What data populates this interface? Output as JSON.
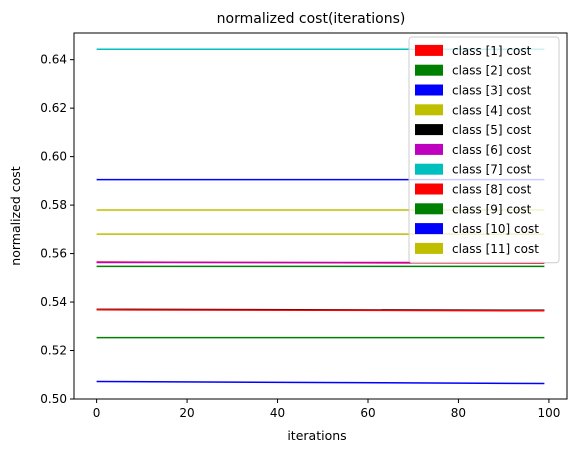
{
  "chart_data": {
    "type": "line",
    "title": "normalized cost(iterations)",
    "xlabel": "iterations",
    "ylabel": "normalized cost",
    "xlim": [
      -5,
      104
    ],
    "ylim": [
      0.5,
      0.651
    ],
    "xticks": [
      0,
      20,
      40,
      60,
      80,
      100
    ],
    "xtick_labels": [
      "0",
      "20",
      "40",
      "60",
      "80",
      "100"
    ],
    "yticks": [
      0.5,
      0.52,
      0.54,
      0.56,
      0.58,
      0.6,
      0.62,
      0.64
    ],
    "ytick_labels": [
      "0.50",
      "0.52",
      "0.54",
      "0.56",
      "0.58",
      "0.60",
      "0.62",
      "0.64"
    ],
    "grid": false,
    "legend_position": "upper-right",
    "series": [
      {
        "name": "class [1] cost",
        "color": "#ff0000",
        "x": [
          0,
          99
        ],
        "values": [
          0.5565,
          0.556
        ]
      },
      {
        "name": "class [2] cost",
        "color": "#008000",
        "x": [
          0,
          99
        ],
        "values": [
          0.5253,
          0.5253
        ]
      },
      {
        "name": "class [3] cost",
        "color": "#0000ff",
        "x": [
          0,
          99
        ],
        "values": [
          0.5072,
          0.5064
        ]
      },
      {
        "name": "class [4] cost",
        "color": "#bfbf00",
        "x": [
          0,
          99
        ],
        "values": [
          0.568,
          0.568
        ]
      },
      {
        "name": "class [5] cost",
        "color": "#000000",
        "x": [
          0,
          99
        ],
        "values": [
          0.537,
          0.5366
        ]
      },
      {
        "name": "class [6] cost",
        "color": "#bf00bf",
        "x": [
          0,
          99
        ],
        "values": [
          0.5563,
          0.5563
        ]
      },
      {
        "name": "class [7] cost",
        "color": "#00bfbf",
        "x": [
          0,
          99
        ],
        "values": [
          0.6443,
          0.6443
        ]
      },
      {
        "name": "class [8] cost",
        "color": "#ff0000",
        "x": [
          0,
          99
        ],
        "values": [
          0.5368,
          0.5364
        ]
      },
      {
        "name": "class [9] cost",
        "color": "#008000",
        "x": [
          0,
          99
        ],
        "values": [
          0.5547,
          0.5547
        ]
      },
      {
        "name": "class [10] cost",
        "color": "#0000ff",
        "x": [
          0,
          99
        ],
        "values": [
          0.5905,
          0.5905
        ]
      },
      {
        "name": "class [11] cost",
        "color": "#bfbf00",
        "x": [
          0,
          99
        ],
        "values": [
          0.578,
          0.578
        ]
      }
    ]
  }
}
